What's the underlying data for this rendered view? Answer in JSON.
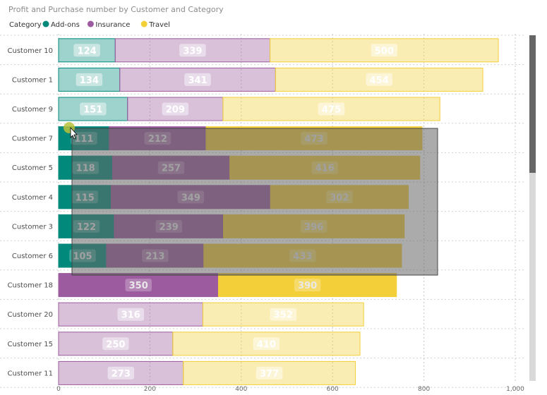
{
  "chart_data": {
    "type": "bar",
    "orientation": "horizontal",
    "stacked": true,
    "title": "Profit and Purchase number by Customer and Category",
    "legend_title": "Category",
    "legend_position": "top-left",
    "categories": [
      "Customer 10",
      "Customer 1",
      "Customer 9",
      "Customer 7",
      "Customer 5",
      "Customer 4",
      "Customer 3",
      "Customer 6",
      "Customer 18",
      "Customer 20",
      "Customer 15",
      "Customer 11"
    ],
    "series": [
      {
        "name": "Add-ons",
        "color": "#01897b",
        "values": [
          124,
          134,
          151,
          111,
          118,
          115,
          122,
          105,
          null,
          null,
          null,
          null
        ]
      },
      {
        "name": "Insurance",
        "color": "#9c5b9e",
        "values": [
          339,
          341,
          209,
          212,
          257,
          349,
          239,
          213,
          350,
          316,
          250,
          273
        ]
      },
      {
        "name": "Travel",
        "color": "#f3cf3a",
        "values": [
          500,
          454,
          475,
          473,
          416,
          302,
          396,
          433,
          390,
          352,
          410,
          377
        ]
      }
    ],
    "highlighted_categories": [
      "Customer 7",
      "Customer 5",
      "Customer 4",
      "Customer 3",
      "Customer 6",
      "Customer 18"
    ],
    "xlim": [
      0,
      1000
    ],
    "xticks": [
      0,
      200,
      400,
      600,
      800,
      1000
    ],
    "xtick_labels": [
      "0",
      "200",
      "400",
      "600",
      "800",
      "1,000"
    ],
    "grid": true
  }
}
